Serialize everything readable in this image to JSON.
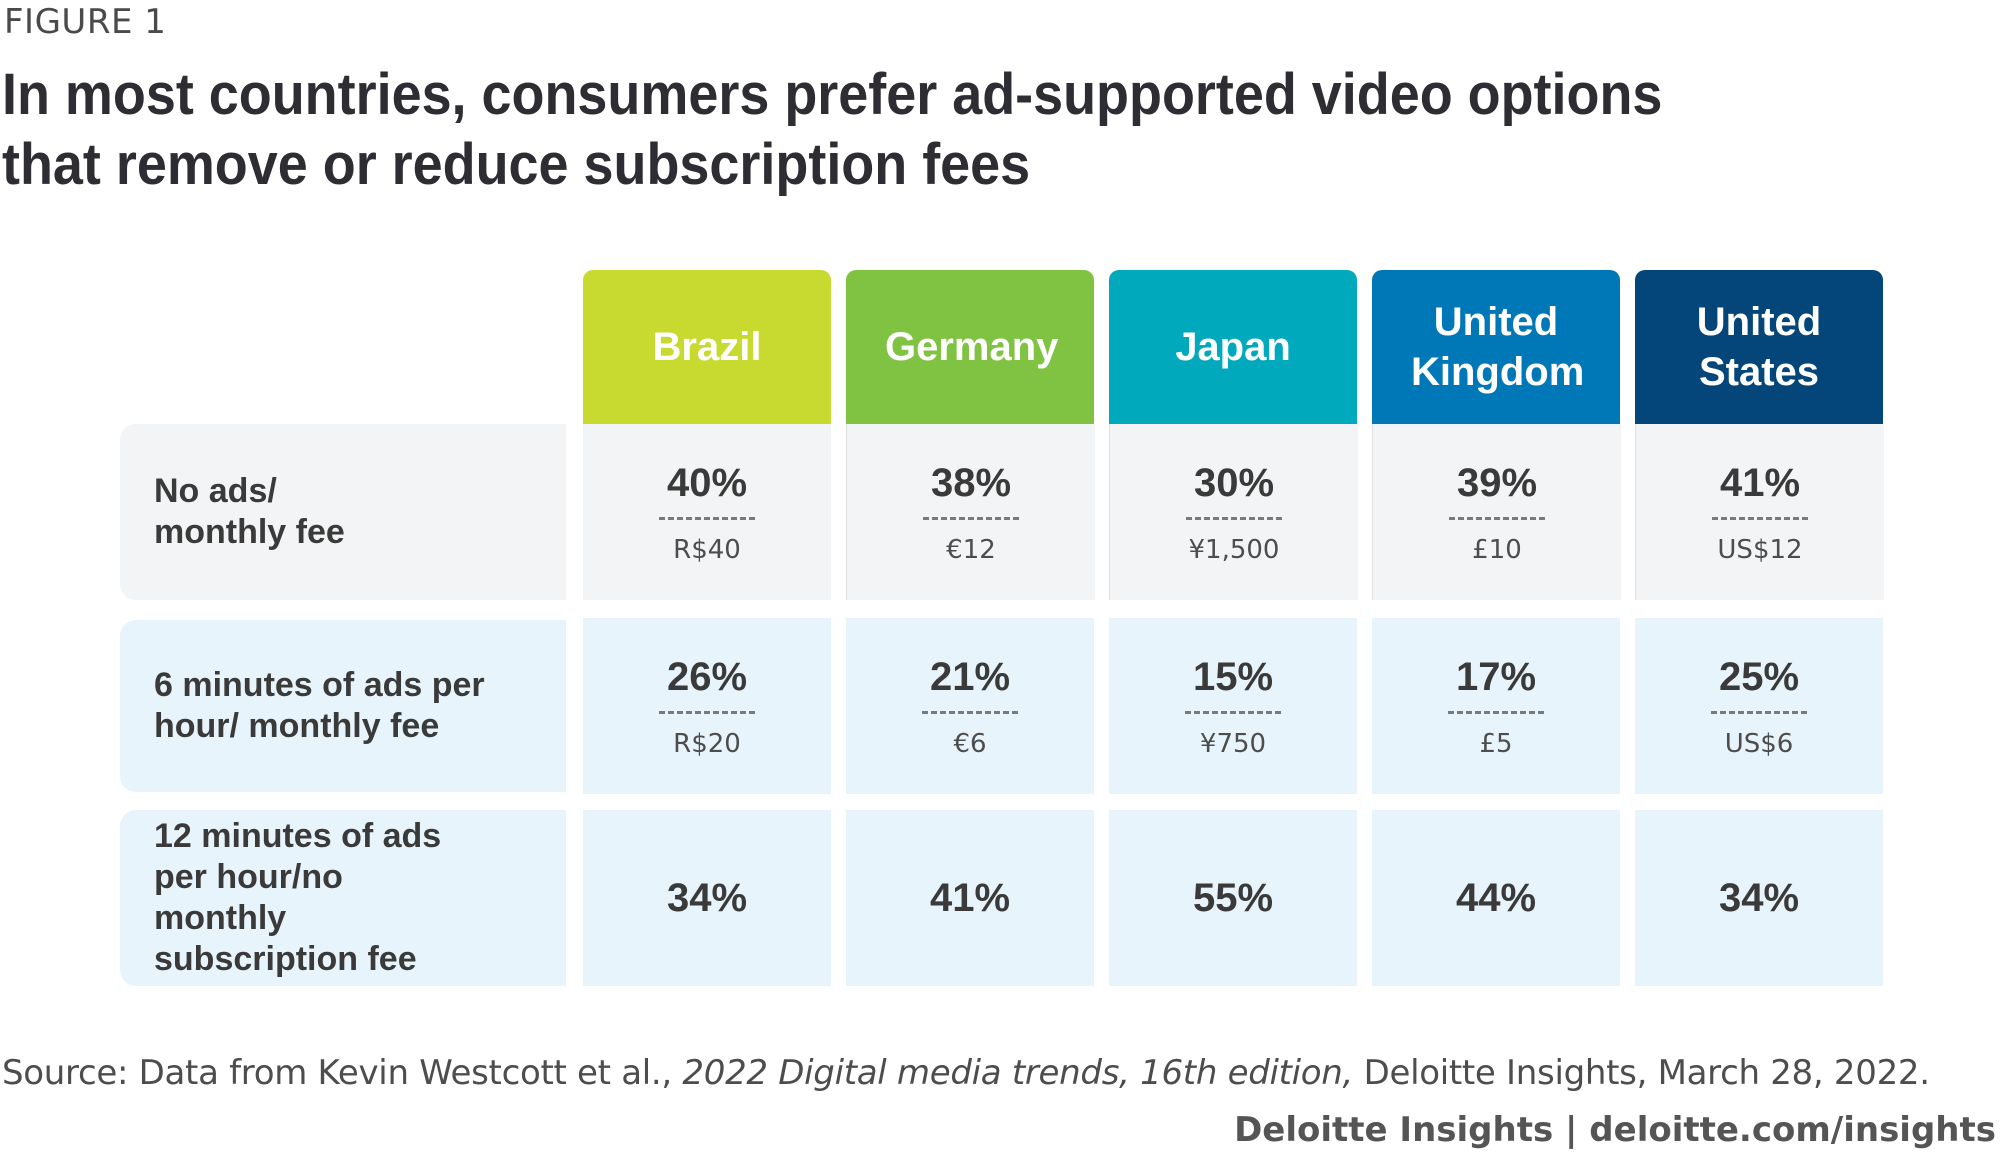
{
  "figure_label": "FIGURE 1",
  "title": "In most countries, consumers prefer ad-supported video options that remove or reduce subscription fees",
  "source": {
    "prefix": "Source: Data from Kevin Westcott et al., ",
    "italic": "2022 Digital media trends, 16th edition,",
    "suffix": " Deloitte Insights, March 28, 2022."
  },
  "brand": "Deloitte Insights | deloitte.com/insights",
  "chart_data": {
    "type": "table",
    "title": "In most countries, consumers prefer ad-supported video options that remove or reduce subscription fees",
    "columns": [
      {
        "name": "Brazil",
        "color": "#c8d930"
      },
      {
        "name": "Germany",
        "color": "#80c242"
      },
      {
        "name": "Japan",
        "color": "#00a9bc"
      },
      {
        "name": "United Kingdom",
        "color": "#0077b6"
      },
      {
        "name": "United States",
        "color": "#04467a"
      }
    ],
    "rows": [
      {
        "label": "No ads/ monthly fee",
        "values": [
          "40%",
          "38%",
          "30%",
          "39%",
          "41%"
        ],
        "prices": [
          "R$40",
          "€12",
          "¥1,500",
          "£10",
          "US$12"
        ]
      },
      {
        "label": "6 minutes of ads per hour/ monthly fee",
        "values": [
          "26%",
          "21%",
          "15%",
          "17%",
          "25%"
        ],
        "prices": [
          "R$20",
          "€6",
          "¥750",
          "£5",
          "US$6"
        ]
      },
      {
        "label": "12 minutes of ads per hour/no monthly subscription fee",
        "values": [
          "34%",
          "41%",
          "55%",
          "44%",
          "34%"
        ],
        "prices": []
      }
    ]
  },
  "colors": {
    "row_grey": "#f3f4f5",
    "row_blue": "#e8f4fb"
  }
}
